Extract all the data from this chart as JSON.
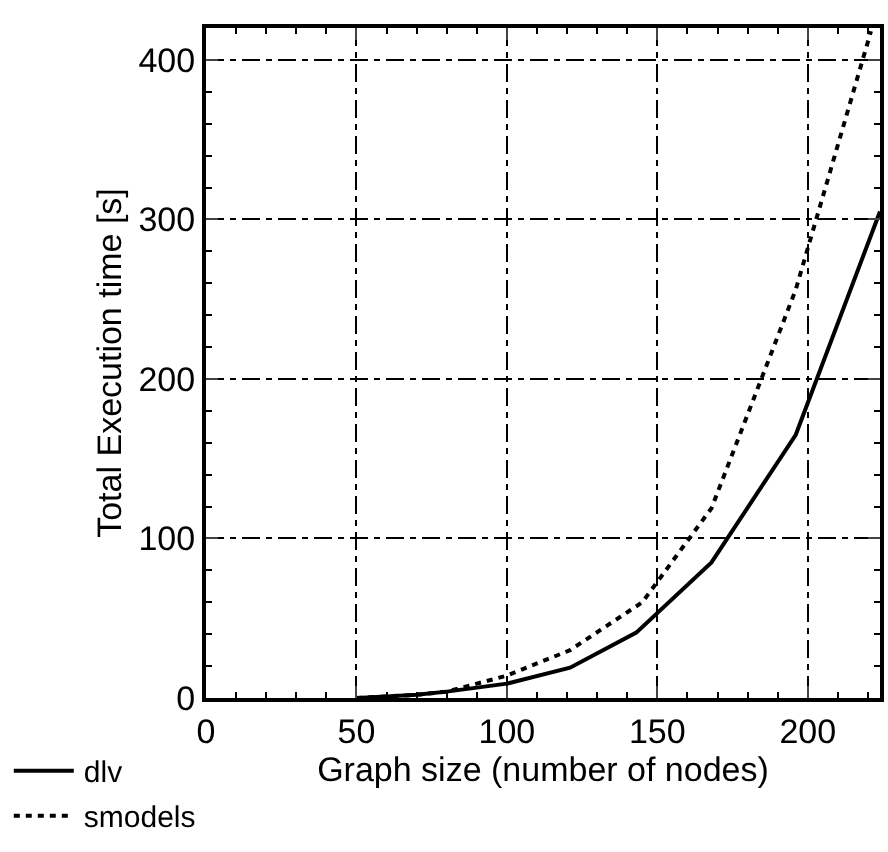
{
  "chart_data": {
    "type": "line",
    "xlabel": "Graph size (number of nodes)",
    "ylabel": "Total Execution time [s]",
    "xlim": [
      0,
      224
    ],
    "ylim": [
      0,
      420
    ],
    "xticks": [
      0,
      50,
      100,
      150,
      200
    ],
    "yticks": [
      0,
      100,
      200,
      300,
      400
    ],
    "grid": true,
    "legend": "bottom left",
    "marker": "none",
    "series": [
      {
        "name": "dlv",
        "color": "#000000",
        "line_style": "solid",
        "x": [
          50,
          60,
          70,
          80,
          100,
          121,
          143,
          168,
          196,
          224
        ],
        "values": [
          0,
          1,
          2,
          4,
          9,
          19,
          41,
          85,
          165,
          305
        ]
      },
      {
        "name": "smodels",
        "color": "#000000",
        "line_style": "dashed",
        "x": [
          50,
          60,
          70,
          80,
          100,
          121,
          145,
          168,
          196,
          221
        ],
        "values": [
          0,
          1,
          2,
          4,
          14,
          30,
          60,
          119,
          256,
          418
        ]
      }
    ]
  }
}
